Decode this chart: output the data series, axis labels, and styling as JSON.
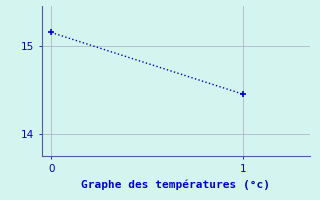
{
  "x": [
    0,
    1
  ],
  "y": [
    15.15,
    14.45
  ],
  "line_color": "#0000cc",
  "line_style": ":",
  "marker": "+",
  "marker_size": 5,
  "marker_color": "#0000cc",
  "bg_color": "#d4f5ef",
  "grid_color": "#b0b8c8",
  "axis_color": "#5555aa",
  "tick_color": "#0000cc",
  "xlabel": "Graphe des températures (°c)",
  "xlabel_fontsize": 8,
  "xlabel_color": "#0000cc",
  "xlim": [
    -0.05,
    1.35
  ],
  "ylim": [
    13.75,
    15.45
  ],
  "yticks": [
    14,
    15
  ],
  "xticks": [
    0,
    1
  ],
  "tick_fontsize": 7.5
}
